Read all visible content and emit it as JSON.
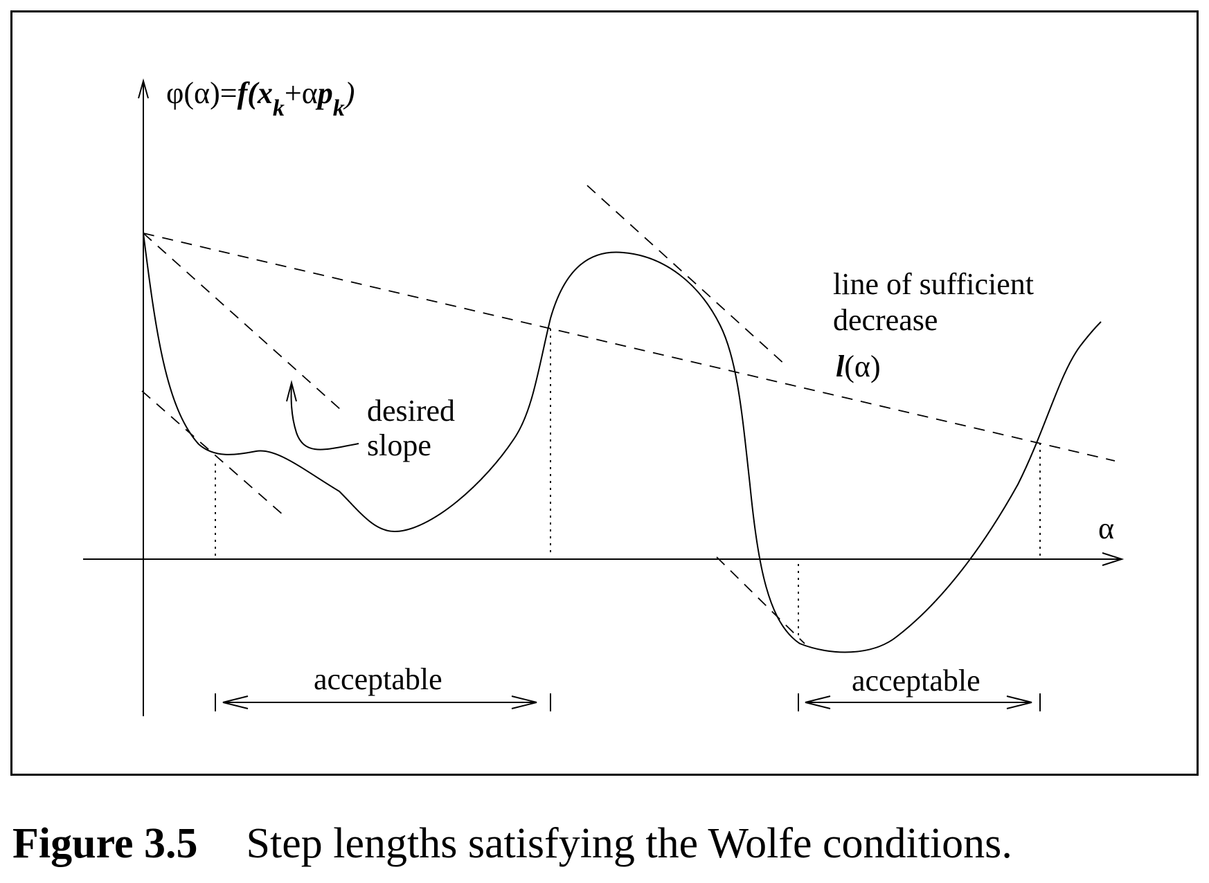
{
  "axes": {
    "y_label": "φ(α)=f(x_k+αp_k)",
    "y_label_parts": {
      "prefix": "φ(α)=",
      "f_open": "f(",
      "x": "x",
      "sub_k1": "k",
      "plus_alpha": "+α",
      "p": "p",
      "sub_k2": "k",
      "close": ")"
    },
    "x_label": "α"
  },
  "annotations": {
    "desired_slope_line1": "desired",
    "desired_slope_line2": "slope",
    "sufficient_decrease_line1": "line of sufficient",
    "sufficient_decrease_line2": "decrease",
    "l_alpha_l": "l",
    "l_alpha_rest": "(α)"
  },
  "intervals": [
    {
      "label": "acceptable"
    },
    {
      "label": "acceptable"
    }
  ],
  "caption": {
    "number": "Figure 3.5",
    "text": "Step lengths satisfying the Wolfe conditions."
  }
}
